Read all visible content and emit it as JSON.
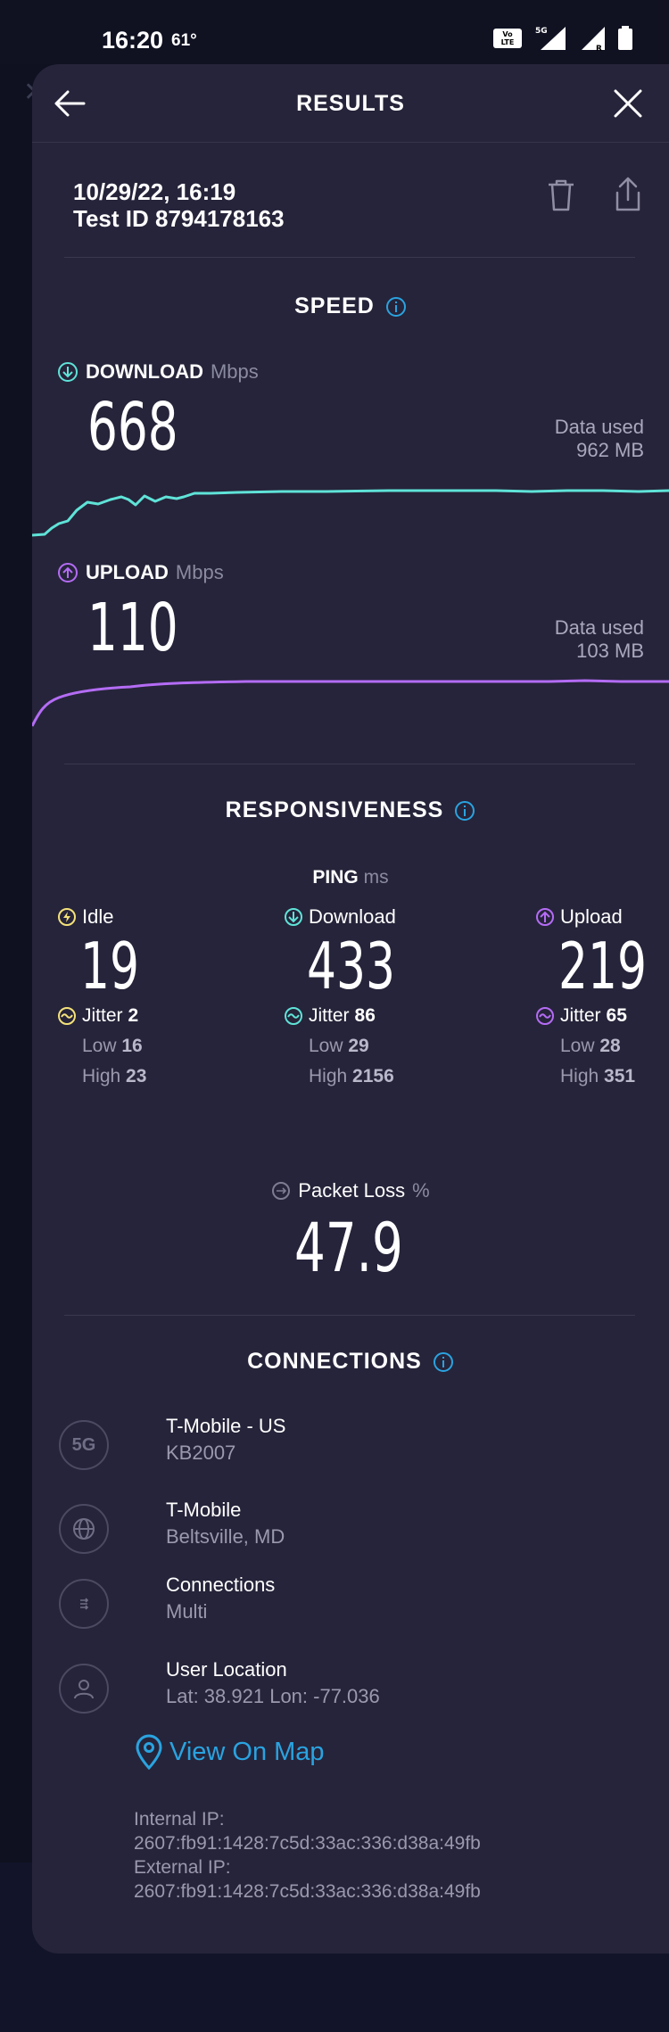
{
  "status_bar": {
    "time": "16:20",
    "temperature": "61°",
    "icons": [
      "volte-icon",
      "5g-icon",
      "signal-icon",
      "roaming-signal-icon",
      "battery-icon"
    ]
  },
  "header": {
    "title": "RESULTS"
  },
  "test": {
    "date": "10/29/22, 16:19",
    "test_id": "Test ID 8794178163"
  },
  "speed": {
    "title": "SPEED",
    "download": {
      "label": "DOWNLOAD",
      "unit": "Mbps",
      "value": "668",
      "data_used_label": "Data used",
      "data_used": "962 MB",
      "color": "#5fe3d8"
    },
    "upload": {
      "label": "UPLOAD",
      "unit": "Mbps",
      "value": "110",
      "data_used_label": "Data used",
      "data_used": "103 MB",
      "color": "#b46cf5"
    }
  },
  "responsiveness": {
    "title": "RESPONSIVENESS",
    "ping_label": "PING",
    "ping_unit": "ms",
    "idle": {
      "label": "Idle",
      "value": "19",
      "jitter_label": "Jitter",
      "jitter": "2",
      "low_label": "Low",
      "low": "16",
      "high_label": "High",
      "high": "23",
      "color": "#f4e27a"
    },
    "download": {
      "label": "Download",
      "value": "433",
      "jitter_label": "Jitter",
      "jitter": "86",
      "low_label": "Low",
      "low": "29",
      "high_label": "High",
      "high": "2156",
      "color": "#5fe3d8"
    },
    "upload": {
      "label": "Upload",
      "value": "219",
      "jitter_label": "Jitter",
      "jitter": "65",
      "low_label": "Low",
      "low": "28",
      "high_label": "High",
      "high": "351",
      "color": "#b46cf5"
    },
    "packet_loss": {
      "label": "Packet Loss",
      "unit": "%",
      "value": "47.9"
    }
  },
  "connections": {
    "title": "CONNECTIONS",
    "carrier": {
      "badge": "5G",
      "name": "T-Mobile - US",
      "device": "KB2007"
    },
    "provider": {
      "name": "T-Mobile",
      "location": "Beltsville, MD"
    },
    "mode": {
      "name": "Connections",
      "value": "Multi"
    },
    "user_location": {
      "name": "User Location",
      "coords": "Lat: 38.921 Lon: -77.036"
    },
    "map_link": "View On Map",
    "internal_ip_label": "Internal IP:",
    "internal_ip": "2607:fb91:1428:7c5d:33ac:336:d38a:49fb",
    "external_ip_label": "External IP:",
    "external_ip": "2607:fb91:1428:7c5d:33ac:336:d38a:49fb"
  },
  "colors": {
    "accent": "#2aa3e0",
    "sheet": "#26243a"
  }
}
